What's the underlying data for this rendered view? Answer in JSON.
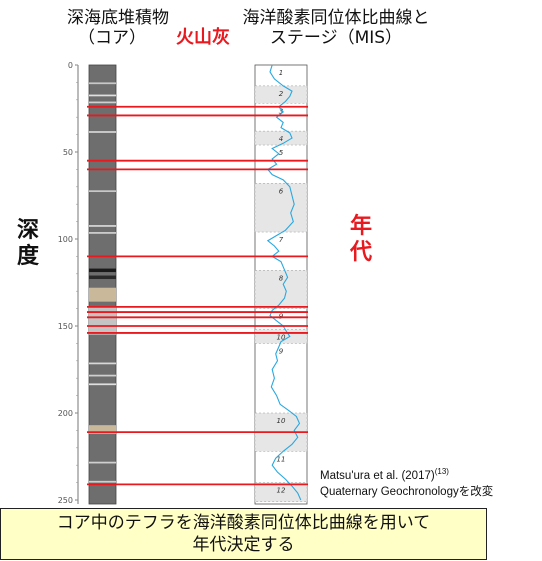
{
  "header": {
    "core_title_line1": "深海底堆積物",
    "core_title_line2": "（コア）",
    "ash_label": "火山灰",
    "curve_title_line1": "海洋酸素同位体比曲線と",
    "curve_title_line2": "ステージ（MIS）"
  },
  "side": {
    "depth_label_line1": "深",
    "depth_label_line2": "度",
    "age_label_line1": "年",
    "age_label_line2": "代"
  },
  "citation": {
    "line1_prefix": "Matsu'ura et al. (2017)",
    "line1_sup": "(13)",
    "line2": "Quaternary Geochronologyを改変"
  },
  "caption": {
    "line1": "コア中のテフラを海洋酸素同位体比曲線を用いて",
    "line2": "年代決定する"
  },
  "chart_data": {
    "type": "diagram",
    "depth_axis": {
      "ylim": [
        0,
        250
      ],
      "ticks": [
        0,
        50,
        100,
        150,
        200,
        250
      ]
    },
    "tephra_depths": [
      24,
      29,
      55,
      60,
      110,
      139,
      142,
      145,
      150,
      154,
      211,
      241
    ],
    "mis_stages": [
      {
        "label": "1",
        "top": 0,
        "bottom": 12,
        "shaded": false
      },
      {
        "label": "2",
        "top": 12,
        "bottom": 22,
        "shaded": true
      },
      {
        "label": "3",
        "top": 22,
        "bottom": 38,
        "shaded": false
      },
      {
        "label": "4",
        "top": 38,
        "bottom": 46,
        "shaded": true
      },
      {
        "label": "5",
        "top": 46,
        "bottom": 68,
        "shaded": false
      },
      {
        "label": "6",
        "top": 68,
        "bottom": 96,
        "shaded": true
      },
      {
        "label": "7",
        "top": 96,
        "bottom": 118,
        "shaded": false
      },
      {
        "label": "8",
        "top": 118,
        "bottom": 140,
        "shaded": true
      },
      {
        "label": "9",
        "top": 140,
        "bottom": 152,
        "shaded": false
      },
      {
        "label": "10",
        "top": 152,
        "bottom": 160,
        "shaded": true
      },
      {
        "label": "9",
        "top": 160,
        "bottom": 200,
        "shaded": false
      },
      {
        "label": "10",
        "top": 200,
        "bottom": 222,
        "shaded": true
      },
      {
        "label": "11",
        "top": 222,
        "bottom": 240,
        "shaded": false
      },
      {
        "label": "12",
        "top": 240,
        "bottom": 252,
        "shaded": true
      }
    ],
    "isotope_curve": [
      [
        0,
        0.3
      ],
      [
        4,
        0.25
      ],
      [
        8,
        0.35
      ],
      [
        12,
        0.55
      ],
      [
        15,
        0.75
      ],
      [
        18,
        0.7
      ],
      [
        21,
        0.6
      ],
      [
        24,
        0.45
      ],
      [
        27,
        0.55
      ],
      [
        30,
        0.4
      ],
      [
        33,
        0.55
      ],
      [
        36,
        0.5
      ],
      [
        39,
        0.7
      ],
      [
        42,
        0.75
      ],
      [
        45,
        0.55
      ],
      [
        48,
        0.3
      ],
      [
        51,
        0.45
      ],
      [
        54,
        0.3
      ],
      [
        57,
        0.4
      ],
      [
        60,
        0.2
      ],
      [
        63,
        0.3
      ],
      [
        66,
        0.55
      ],
      [
        70,
        0.7
      ],
      [
        75,
        0.75
      ],
      [
        80,
        0.8
      ],
      [
        85,
        0.72
      ],
      [
        90,
        0.78
      ],
      [
        95,
        0.6
      ],
      [
        98,
        0.4
      ],
      [
        101,
        0.2
      ],
      [
        104,
        0.35
      ],
      [
        107,
        0.45
      ],
      [
        110,
        0.3
      ],
      [
        113,
        0.5
      ],
      [
        116,
        0.55
      ],
      [
        119,
        0.6
      ],
      [
        122,
        0.65
      ],
      [
        126,
        0.55
      ],
      [
        130,
        0.62
      ],
      [
        134,
        0.58
      ],
      [
        138,
        0.45
      ],
      [
        141,
        0.3
      ],
      [
        144,
        0.25
      ],
      [
        147,
        0.4
      ],
      [
        150,
        0.55
      ],
      [
        153,
        0.62
      ],
      [
        156,
        0.7
      ],
      [
        159,
        0.5
      ],
      [
        162,
        0.45
      ],
      [
        166,
        0.38
      ],
      [
        170,
        0.42
      ],
      [
        175,
        0.3
      ],
      [
        180,
        0.35
      ],
      [
        185,
        0.28
      ],
      [
        190,
        0.4
      ],
      [
        195,
        0.48
      ],
      [
        199,
        0.7
      ],
      [
        202,
        0.85
      ],
      [
        206,
        0.92
      ],
      [
        210,
        0.8
      ],
      [
        214,
        0.88
      ],
      [
        218,
        0.75
      ],
      [
        222,
        0.55
      ],
      [
        226,
        0.38
      ],
      [
        230,
        0.3
      ],
      [
        234,
        0.42
      ],
      [
        238,
        0.6
      ],
      [
        242,
        0.75
      ],
      [
        246,
        0.88
      ],
      [
        250,
        0.95
      ]
    ],
    "core_bands": [
      {
        "top": 10,
        "bottom": 11,
        "color": "#c8c8c8"
      },
      {
        "top": 17,
        "bottom": 18,
        "color": "#e0e0e0"
      },
      {
        "top": 21,
        "bottom": 22,
        "color": "#d0d0d0"
      },
      {
        "top": 38,
        "bottom": 39,
        "color": "#d4d4d4"
      },
      {
        "top": 72,
        "bottom": 73,
        "color": "#c8c8c8"
      },
      {
        "top": 92,
        "bottom": 93,
        "color": "#d6d6d6"
      },
      {
        "top": 96,
        "bottom": 97,
        "color": "#cfcfcf"
      },
      {
        "top": 117,
        "bottom": 119,
        "color": "#1a1a1a"
      },
      {
        "top": 121,
        "bottom": 123,
        "color": "#2a2a2a"
      },
      {
        "top": 128,
        "bottom": 136,
        "color": "#c9b99a"
      },
      {
        "top": 139,
        "bottom": 155,
        "color": "#c4c4c4"
      },
      {
        "top": 171,
        "bottom": 172,
        "color": "#d8d8d8"
      },
      {
        "top": 178,
        "bottom": 179,
        "color": "#d0d0d0"
      },
      {
        "top": 183,
        "bottom": 184,
        "color": "#e0e0e0"
      },
      {
        "top": 207,
        "bottom": 212,
        "color": "#c9b99a"
      },
      {
        "top": 228,
        "bottom": 229,
        "color": "#d0d0d0"
      },
      {
        "top": 239,
        "bottom": 240,
        "color": "#cfcfcf"
      }
    ],
    "colors": {
      "tephra_line": "#e8191f",
      "curve": "#29a8e0",
      "core_base": "#6e6e6e",
      "stage_shade": "#e6e6e6"
    }
  }
}
